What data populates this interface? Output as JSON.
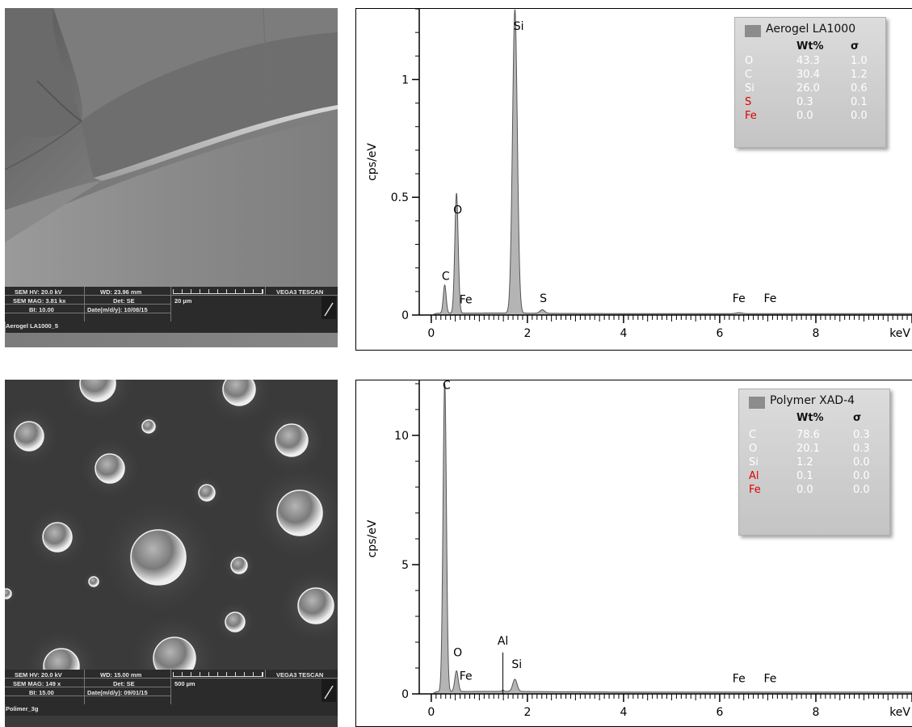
{
  "panels": [
    {
      "sem": {
        "info": {
          "hv": "SEM HV: 20.0 kV",
          "wd": "WD: 23.96 mm",
          "brand": "VEGA3 TESCAN",
          "mag": "SEM MAG: 3.81 kx",
          "det": "Det: SE",
          "scale": "20 µm",
          "bi": "BI: 10.00",
          "date": "Date(m/d/y): 10/08/15"
        },
        "image_name": "Aerogel LA1000_5"
      },
      "legend": {
        "title": "Aerogel LA1000",
        "col_wt": "Wt%",
        "col_sigma": "σ",
        "rows": [
          {
            "el": "O",
            "wt": "43.3",
            "s": "1.0",
            "color": "#ffffff"
          },
          {
            "el": "C",
            "wt": "30.4",
            "s": "1.2",
            "color": "#ffffff"
          },
          {
            "el": "Si",
            "wt": "26.0",
            "s": "0.6",
            "color": "#ffffff"
          },
          {
            "el": "S",
            "wt": "0.3",
            "s": "0.1",
            "color": "#e00000"
          },
          {
            "el": "Fe",
            "wt": "0.0",
            "s": "0.0",
            "color": "#e00000"
          }
        ]
      }
    },
    {
      "sem": {
        "info": {
          "hv": "SEM HV: 20.0 kV",
          "wd": "WD: 15.00 mm",
          "brand": "VEGA3 TESCAN",
          "mag": "SEM MAG: 149 x",
          "det": "Det: SE",
          "scale": "500 µm",
          "bi": "BI: 15.00",
          "date": "Date(m/d/y): 09/01/15"
        },
        "image_name": "Polimer_3g"
      },
      "legend": {
        "title": "Polymer XAD-4",
        "col_wt": "Wt%",
        "col_sigma": "σ",
        "rows": [
          {
            "el": "C",
            "wt": "78.6",
            "s": "0.3",
            "color": "#ffffff"
          },
          {
            "el": "O",
            "wt": "20.1",
            "s": "0.3",
            "color": "#ffffff"
          },
          {
            "el": "Si",
            "wt": "1.2",
            "s": "0.0",
            "color": "#ffffff"
          },
          {
            "el": "Al",
            "wt": "0.1",
            "s": "0.0",
            "color": "#e00000"
          },
          {
            "el": "Fe",
            "wt": "0.0",
            "s": "0.0",
            "color": "#e00000"
          }
        ]
      }
    }
  ],
  "chart_data": [
    {
      "type": "area",
      "xlabel": "keV",
      "ylabel": "cps/eV",
      "xlim": [
        -0.25,
        10.0
      ],
      "ylim": [
        0,
        1.3
      ],
      "xticks": [
        0,
        2,
        4,
        6,
        8
      ],
      "yticks": [
        0,
        0.5,
        1
      ],
      "ytick_labels": [
        "0",
        "0.5",
        "1"
      ],
      "fill_color": "#b4b4b4",
      "line_color": "#555555",
      "baseline": 0.006,
      "peaks": [
        {
          "x": 0.28,
          "y": 0.12,
          "w": 0.03
        },
        {
          "x": 0.525,
          "y": 0.51,
          "w": 0.035
        },
        {
          "x": 1.74,
          "y": 1.29,
          "w": 0.05
        },
        {
          "x": 2.31,
          "y": 0.015,
          "w": 0.05
        },
        {
          "x": 6.4,
          "y": 0.004,
          "w": 0.06
        }
      ],
      "labels": [
        {
          "text": "C",
          "x": 0.3,
          "y": 0.15
        },
        {
          "text": "O",
          "x": 0.55,
          "y": 0.43
        },
        {
          "text": "Fe",
          "x": 0.72,
          "y": 0.05
        },
        {
          "text": "Si",
          "x": 1.82,
          "y": 1.21
        },
        {
          "text": "S",
          "x": 2.33,
          "y": 0.055
        },
        {
          "text": "Fe",
          "x": 6.4,
          "y": 0.055
        },
        {
          "text": "Fe",
          "x": 7.05,
          "y": 0.055
        }
      ]
    },
    {
      "type": "area",
      "xlabel": "keV",
      "ylabel": "cps/eV",
      "xlim": [
        -0.25,
        10.0
      ],
      "ylim": [
        0,
        12
      ],
      "xticks": [
        0,
        2,
        4,
        6,
        8
      ],
      "yticks": [
        0,
        5,
        10
      ],
      "ytick_labels": [
        "0",
        "5",
        "10"
      ],
      "fill_color": "#b4b4b4",
      "line_color": "#555555",
      "baseline": 0.07,
      "peaks": [
        {
          "x": 0.28,
          "y": 12.0,
          "w": 0.035
        },
        {
          "x": 0.525,
          "y": 0.8,
          "w": 0.035
        },
        {
          "x": 1.49,
          "y": 0.05,
          "w": 0.02
        },
        {
          "x": 1.74,
          "y": 0.47,
          "w": 0.045
        }
      ],
      "markers": [
        {
          "x": 1.49,
          "y": 1.6
        }
      ],
      "labels": [
        {
          "text": "C",
          "x": 0.32,
          "y": 11.8
        },
        {
          "text": "O",
          "x": 0.55,
          "y": 1.45
        },
        {
          "text": "Fe",
          "x": 0.72,
          "y": 0.55
        },
        {
          "text": "Al",
          "x": 1.49,
          "y": 1.9
        },
        {
          "text": "Si",
          "x": 1.78,
          "y": 1.0
        },
        {
          "text": "Fe",
          "x": 6.4,
          "y": 0.45
        },
        {
          "text": "Fe",
          "x": 7.05,
          "y": 0.45
        }
      ]
    }
  ]
}
